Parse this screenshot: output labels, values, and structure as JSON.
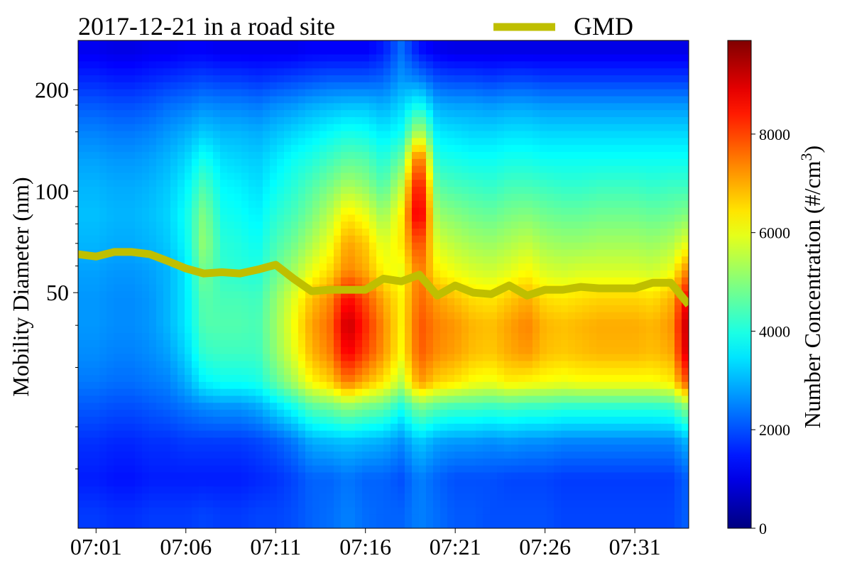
{
  "chart_data": {
    "type": "heatmap",
    "title": "2017-12-21 in a road site",
    "ylabel": "Mobility Diameter (nm)",
    "colorbar_label": "Number Concentration (#/cm",
    "colorbar_label_sup": "3",
    "colorbar_label_close": ")",
    "yscale": "log",
    "ylim": [
      10,
      280
    ],
    "colorbar_range": [
      0,
      9900
    ],
    "colormap": "jet",
    "x_ticks": [
      "07:01",
      "07:06",
      "07:11",
      "07:16",
      "07:21",
      "07:26",
      "07:31"
    ],
    "y_ticks": [
      {
        "value": 200,
        "label": "200"
      },
      {
        "value": 100,
        "label": "100"
      },
      {
        "value": 50,
        "label": "50"
      }
    ],
    "y_minor_ticks": [
      30,
      20,
      15,
      90,
      80,
      70,
      60,
      40,
      150,
      180
    ],
    "colorbar_ticks": [
      {
        "value": 0,
        "label": "0"
      },
      {
        "value": 2000,
        "label": "2000"
      },
      {
        "value": 4000,
        "label": "4000"
      },
      {
        "value": 6000,
        "label": "6000"
      },
      {
        "value": 8000,
        "label": "8000"
      }
    ],
    "legend": [
      {
        "name": "GMD",
        "color": "#bfbf00",
        "position": "top-right-outside"
      }
    ],
    "gmd_series": {
      "name": "GMD",
      "color": "#bfbf00",
      "x_time": [
        "07:00",
        "07:01",
        "07:02",
        "07:03",
        "07:04",
        "07:05",
        "07:06",
        "07:07",
        "07:08",
        "07:09",
        "07:10",
        "07:11",
        "07:12",
        "07:13",
        "07:14",
        "07:15",
        "07:16",
        "07:17",
        "07:18",
        "07:19",
        "07:20",
        "07:21",
        "07:22",
        "07:23",
        "07:24",
        "07:25",
        "07:26",
        "07:27",
        "07:28",
        "07:29",
        "07:30",
        "07:31",
        "07:32",
        "07:33",
        "07:34"
      ],
      "y": [
        65,
        64,
        66,
        66,
        65,
        62,
        59,
        57,
        57.5,
        57,
        58.5,
        60.5,
        55,
        50.5,
        51,
        51,
        51,
        55,
        54,
        56.5,
        49,
        52.5,
        50,
        49.5,
        52.5,
        49,
        51,
        51,
        52,
        51.5,
        51.5,
        51.5,
        53.5,
        53.5,
        46
      ]
    },
    "concentration_sizes_nm": [
      11,
      14,
      18,
      23,
      27,
      33,
      40,
      48,
      58,
      70,
      85,
      103,
      125,
      150,
      180,
      215,
      260
    ],
    "concentration_times": [
      "07:00",
      "07:01",
      "07:02",
      "07:03",
      "07:04",
      "07:05",
      "07:06",
      "07:07",
      "07:08",
      "07:09",
      "07:10",
      "07:11",
      "07:12",
      "07:13",
      "07:14",
      "07:15",
      "07:16",
      "07:17",
      "07:18",
      "07:19",
      "07:20",
      "07:21",
      "07:22",
      "07:23",
      "07:24",
      "07:25",
      "07:26",
      "07:27",
      "07:28",
      "07:29",
      "07:30",
      "07:31",
      "07:32",
      "07:33",
      "07:34"
    ],
    "concentration": [
      [
        1800,
        1800,
        1700,
        1700,
        1800,
        1800,
        1800,
        1900,
        1800,
        1800,
        1900,
        1900,
        2000,
        2200,
        2300,
        2500,
        2300,
        2200,
        2200,
        2500,
        2300,
        2100,
        2100,
        2000,
        2000,
        2000,
        2000,
        1900,
        1900,
        1900,
        1900,
        1900,
        1900,
        1900,
        2200
      ],
      [
        1500,
        1500,
        1400,
        1400,
        1500,
        1500,
        1500,
        1500,
        1500,
        1500,
        1600,
        1700,
        1900,
        2200,
        2200,
        2400,
        2200,
        2200,
        2000,
        2500,
        2200,
        2000,
        2000,
        2000,
        1900,
        1900,
        1900,
        1800,
        1800,
        1800,
        1800,
        1800,
        1800,
        1800,
        2200
      ],
      [
        1700,
        1700,
        1600,
        1600,
        1700,
        1700,
        1800,
        1800,
        1800,
        1800,
        1900,
        2100,
        2400,
        2900,
        3000,
        3100,
        3000,
        2900,
        2600,
        3200,
        2800,
        2700,
        2700,
        2600,
        2700,
        2600,
        2600,
        2500,
        2500,
        2500,
        2500,
        2500,
        2500,
        2500,
        3000
      ],
      [
        2100,
        2100,
        2000,
        2000,
        2100,
        2200,
        2400,
        2600,
        2700,
        2700,
        2900,
        3400,
        3900,
        4600,
        4800,
        5200,
        4900,
        4700,
        4000,
        5000,
        4600,
        4400,
        4400,
        4300,
        4400,
        4300,
        4300,
        4200,
        4200,
        4200,
        4200,
        4200,
        4200,
        4300,
        5200
      ],
      [
        2400,
        2400,
        2300,
        2300,
        2400,
        2500,
        2900,
        3600,
        3800,
        3800,
        3900,
        4600,
        5300,
        6200,
        6600,
        7500,
        6900,
        6400,
        5500,
        7200,
        6600,
        6400,
        6100,
        6000,
        6300,
        6200,
        6100,
        6000,
        6100,
        6100,
        6100,
        6100,
        6100,
        6300,
        8000
      ],
      [
        2600,
        2600,
        2500,
        2500,
        2600,
        2800,
        3300,
        4200,
        4300,
        4300,
        4300,
        5100,
        5900,
        6900,
        7400,
        8800,
        8000,
        7200,
        6200,
        7800,
        7300,
        7100,
        6800,
        6700,
        7000,
        7200,
        6800,
        6700,
        6800,
        6900,
        6900,
        6900,
        6800,
        7000,
        9300
      ],
      [
        2700,
        2700,
        2600,
        2600,
        2700,
        3000,
        3500,
        4500,
        4500,
        4500,
        4400,
        5200,
        6100,
        7100,
        7600,
        9300,
        8300,
        7300,
        6300,
        7900,
        7400,
        7200,
        6900,
        6800,
        7100,
        7400,
        6900,
        6800,
        6900,
        7000,
        7000,
        7000,
        6900,
        7200,
        9500
      ],
      [
        2700,
        2700,
        2600,
        2600,
        2700,
        3000,
        3500,
        4600,
        4400,
        4400,
        4300,
        5100,
        5900,
        6800,
        7300,
        8700,
        7900,
        7000,
        6300,
        7700,
        7100,
        6800,
        6500,
        6400,
        6700,
        7000,
        6500,
        6400,
        6500,
        6600,
        6600,
        6600,
        6500,
        6900,
        9000
      ],
      [
        2800,
        2800,
        2700,
        2700,
        2800,
        3000,
        3500,
        4900,
        4200,
        4100,
        4000,
        4700,
        5300,
        6000,
        6500,
        7400,
        7000,
        6200,
        6000,
        7600,
        6300,
        6000,
        5800,
        5700,
        5900,
        6200,
        5800,
        5700,
        5800,
        5800,
        5800,
        5800,
        5700,
        6000,
        7500
      ],
      [
        3000,
        3000,
        2900,
        2900,
        3000,
        3200,
        3700,
        5200,
        4100,
        4000,
        3800,
        4400,
        4800,
        5400,
        6000,
        7100,
        6700,
        5800,
        6400,
        8200,
        5800,
        5500,
        5300,
        5200,
        5400,
        5600,
        5300,
        5200,
        5200,
        5300,
        5300,
        5300,
        5200,
        5400,
        6000
      ],
      [
        3100,
        3100,
        3000,
        3000,
        3100,
        3300,
        3800,
        5000,
        3900,
        3800,
        3600,
        4100,
        4400,
        4900,
        5500,
        6400,
        6000,
        5200,
        6300,
        9300,
        5200,
        5000,
        4800,
        4700,
        4900,
        5000,
        4800,
        4700,
        4700,
        4800,
        4800,
        4800,
        4700,
        4800,
        5000
      ],
      [
        3000,
        3000,
        2900,
        2900,
        3000,
        3200,
        3600,
        4500,
        3700,
        3600,
        3400,
        3800,
        4100,
        4500,
        4900,
        5400,
        5100,
        4500,
        5600,
        9000,
        4600,
        4400,
        4300,
        4200,
        4400,
        4400,
        4300,
        4200,
        4200,
        4300,
        4300,
        4300,
        4200,
        4300,
        4300
      ],
      [
        2800,
        2800,
        2700,
        2700,
        2800,
        3000,
        3300,
        3900,
        3400,
        3300,
        3200,
        3500,
        3800,
        4000,
        4300,
        4600,
        4500,
        4000,
        4700,
        8000,
        4000,
        3900,
        3800,
        3800,
        3900,
        3900,
        3800,
        3800,
        3800,
        3800,
        3800,
        3800,
        3800,
        3800,
        3800
      ],
      [
        2500,
        2500,
        2400,
        2400,
        2500,
        2700,
        2900,
        3200,
        3000,
        3000,
        2900,
        3100,
        3300,
        3500,
        3700,
        3900,
        3800,
        3500,
        3800,
        5600,
        3500,
        3400,
        3300,
        3300,
        3400,
        3400,
        3300,
        3300,
        3300,
        3300,
        3300,
        3300,
        3300,
        3300,
        3300
      ],
      [
        2100,
        2100,
        2000,
        2000,
        2100,
        2300,
        2400,
        2600,
        2500,
        2500,
        2400,
        2600,
        2700,
        2900,
        3000,
        3100,
        3100,
        2900,
        3300,
        3900,
        2900,
        2800,
        2800,
        2700,
        2800,
        2800,
        2700,
        2700,
        2700,
        2700,
        2700,
        2700,
        2700,
        2700,
        2700
      ],
      [
        1600,
        1600,
        1500,
        1500,
        1600,
        1700,
        1800,
        1900,
        1800,
        1800,
        1700,
        1800,
        1900,
        2000,
        2100,
        2100,
        2100,
        2200,
        2700,
        2500,
        2000,
        1900,
        1900,
        1800,
        1900,
        1900,
        1800,
        1800,
        1800,
        1800,
        1800,
        1800,
        1800,
        1800,
        1800
      ],
      [
        1100,
        1100,
        1000,
        1000,
        1100,
        1100,
        1200,
        1200,
        1100,
        1100,
        1100,
        1100,
        1100,
        1200,
        1200,
        1200,
        1200,
        1500,
        2300,
        1400,
        1100,
        1000,
        1000,
        1000,
        1000,
        1000,
        1000,
        1000,
        1000,
        1000,
        1000,
        1000,
        1000,
        1000,
        1000
      ]
    ]
  }
}
